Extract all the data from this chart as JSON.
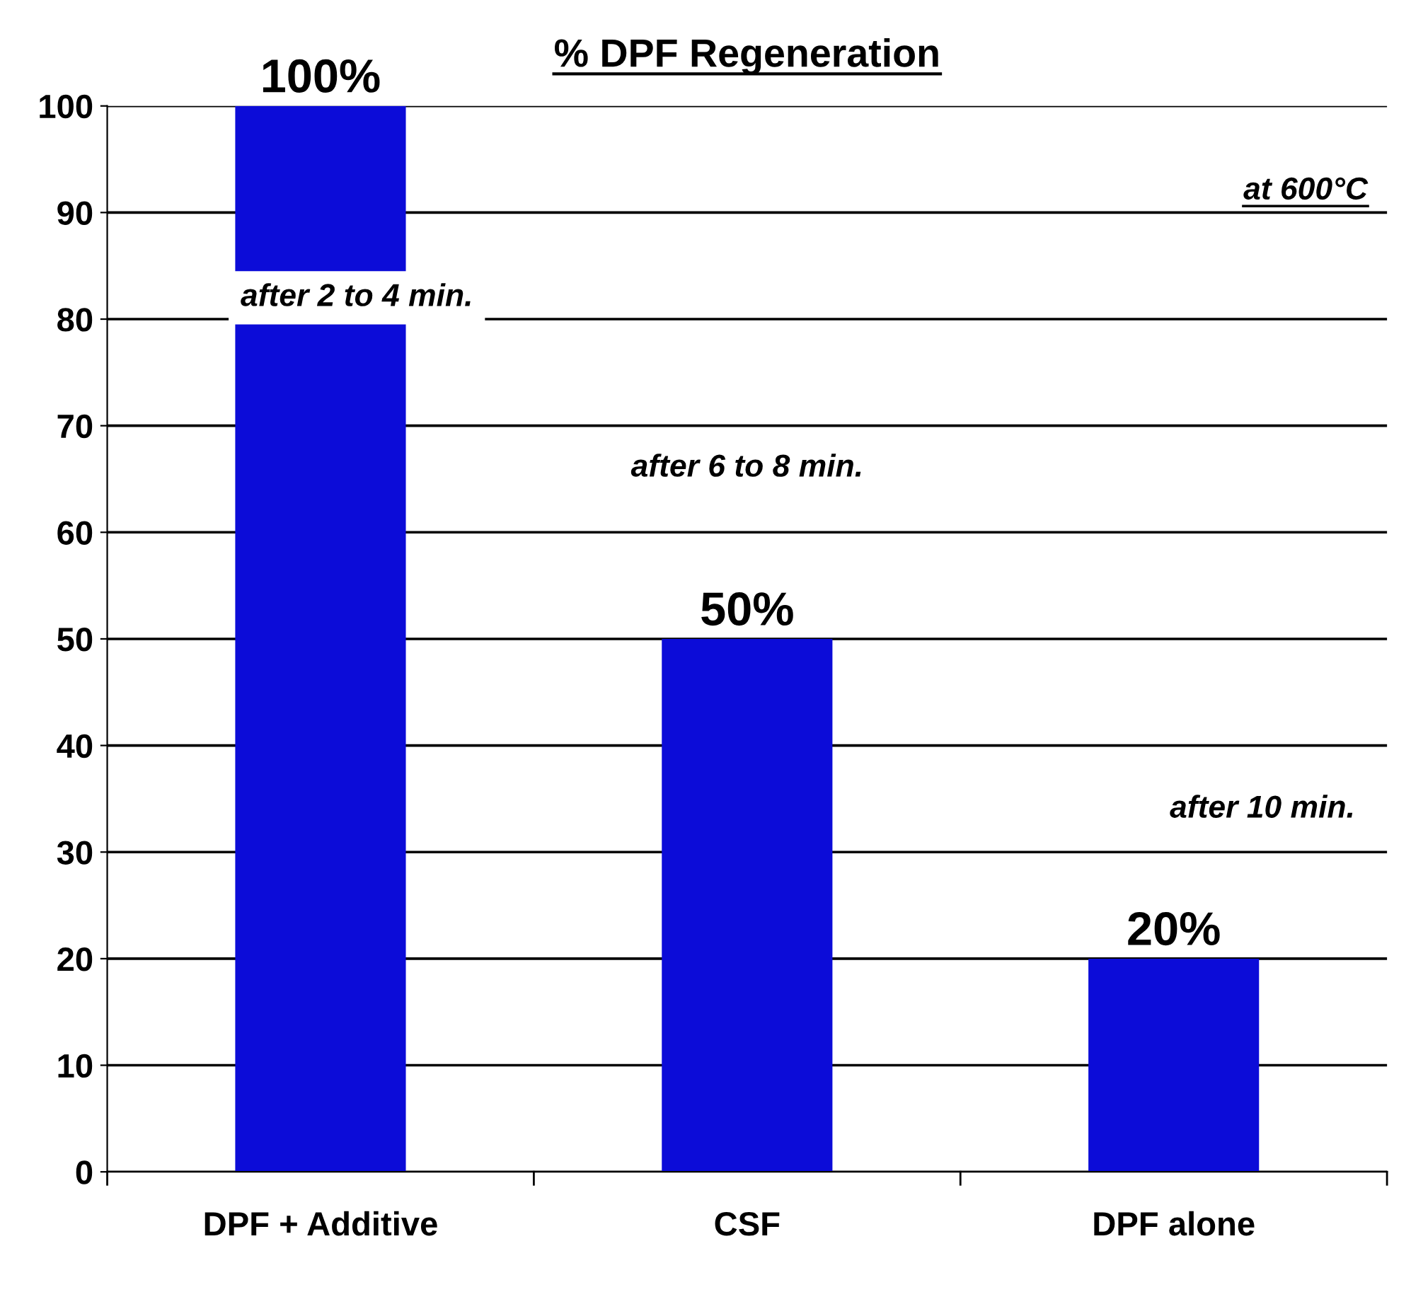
{
  "chart_data": {
    "type": "bar",
    "title": "% DPF Regeneration",
    "categories": [
      "DPF + Additive",
      "CSF",
      "DPF alone"
    ],
    "values": [
      100,
      50,
      20
    ],
    "value_labels": [
      "100%",
      "50%",
      "20%"
    ],
    "color": "#0c0cd8",
    "ylim": [
      0,
      100
    ],
    "yticks": [
      0,
      10,
      20,
      30,
      40,
      50,
      60,
      70,
      80,
      90,
      100
    ],
    "grid": "y",
    "annotations": [
      "at 600°C",
      "after 2 to 4 min.",
      "after 6 to 8 min.",
      "after 10 min."
    ]
  }
}
